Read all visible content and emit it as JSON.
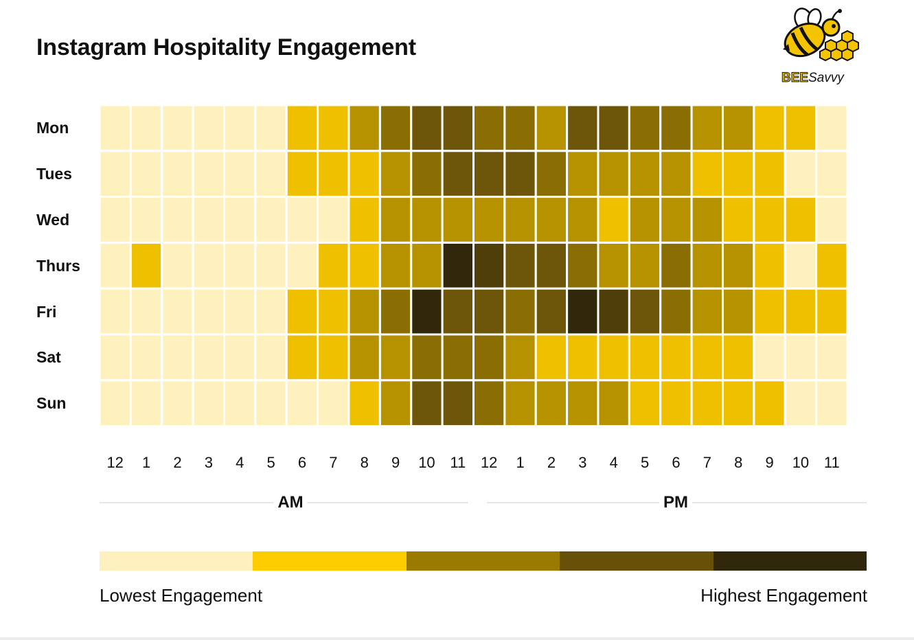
{
  "chart_data": {
    "type": "heatmap",
    "title": "Instagram Hospitality Engagement",
    "rows": [
      "Mon",
      "Tues",
      "Wed",
      "Thurs",
      "Fri",
      "Sat",
      "Sun"
    ],
    "columns": [
      "12",
      "1",
      "2",
      "3",
      "4",
      "5",
      "6",
      "7",
      "8",
      "9",
      "10",
      "11",
      "12",
      "1",
      "2",
      "3",
      "4",
      "5",
      "6",
      "7",
      "8",
      "9",
      "10",
      "11"
    ],
    "periods": [
      {
        "label": "AM",
        "from": 0,
        "to": 11
      },
      {
        "label": "PM",
        "from": 12,
        "to": 23
      }
    ],
    "values": [
      [
        0.5,
        0.5,
        0.5,
        0.5,
        0.5,
        0.5,
        1.5,
        1.5,
        2,
        2.5,
        3,
        3,
        2.5,
        2.5,
        2,
        3,
        3,
        2.5,
        2.5,
        2,
        2,
        1.5,
        1.5,
        0.5
      ],
      [
        0.5,
        0.5,
        0.5,
        0.5,
        0.5,
        0.5,
        1.5,
        1.5,
        1.5,
        2,
        2.5,
        3,
        3,
        3,
        2.5,
        2,
        2,
        2,
        2,
        1.5,
        1.5,
        1.5,
        0.5,
        0.5
      ],
      [
        0.5,
        0.5,
        0.5,
        0.5,
        0.5,
        0.5,
        0.5,
        0.5,
        1.5,
        2,
        2,
        2,
        2,
        2,
        2,
        2,
        1.5,
        2,
        2,
        2,
        1.5,
        1.5,
        1.5,
        0.5
      ],
      [
        0.5,
        1.5,
        0.5,
        0.5,
        0.5,
        0.5,
        0.5,
        1.5,
        1.5,
        2,
        2,
        4,
        3.5,
        3,
        3,
        2.5,
        2,
        2,
        2.5,
        2,
        2,
        1.5,
        0.5,
        1.5
      ],
      [
        0.5,
        0.5,
        0.5,
        0.5,
        0.5,
        0.5,
        1.5,
        1.5,
        2,
        2.5,
        4,
        3,
        3,
        2.5,
        3,
        4,
        3.5,
        3,
        2.5,
        2,
        2,
        1.5,
        1.5,
        1.5
      ],
      [
        0.5,
        0.5,
        0.5,
        0.5,
        0.5,
        0.5,
        1.5,
        1.5,
        2,
        2,
        2.5,
        2.5,
        2.5,
        2,
        1.5,
        1.5,
        1.5,
        1.5,
        1.5,
        1.5,
        1.5,
        0.5,
        0.5,
        0.5
      ],
      [
        0.5,
        0.5,
        0.5,
        0.5,
        0.5,
        0.5,
        0.5,
        0.5,
        1.5,
        2,
        3,
        3,
        2.5,
        2,
        2,
        2,
        2,
        1.5,
        1.5,
        1.5,
        1.5,
        1.5,
        0.5,
        0.5
      ]
    ],
    "scale": {
      "min": 0.5,
      "max": 4,
      "colors": [
        "#fff1bd",
        "#fccc00",
        "#9a7a00",
        "#66500a",
        "#31270a"
      ]
    },
    "legend": {
      "low_label": "Lowest Engagement",
      "high_label": "Highest Engagement",
      "placement": "bottom"
    },
    "grid": false
  },
  "logo": {
    "brand_bee": "BEE",
    "brand_savvy": "Savvy",
    "icon": "bee-with-honeycomb-icon"
  }
}
